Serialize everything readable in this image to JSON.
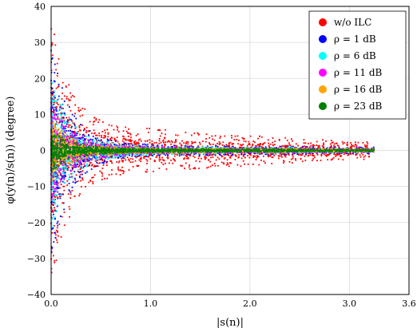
{
  "chart_data": {
    "type": "scatter",
    "title": "",
    "xlabel": "|s(n)|",
    "ylabel": "φ(y(n)/s(n)) (degree)",
    "xlim": [
      0,
      3.6
    ],
    "ylim": [
      -40,
      40
    ],
    "x_ticks": [
      0.0,
      1.0,
      2.0,
      3.0,
      3.6
    ],
    "x_tick_labels": [
      "0.0",
      "1.0",
      "2.0",
      "3.0",
      "3.6"
    ],
    "y_ticks": [
      -40,
      -30,
      -20,
      -10,
      0,
      10,
      20,
      30,
      40
    ],
    "y_tick_labels": [
      "−40",
      "−30",
      "−20",
      "−10",
      "0",
      "10",
      "20",
      "30",
      "40"
    ],
    "grid": true,
    "legend_position": "top-right",
    "series": [
      {
        "name": "w/o ILC",
        "color": "#ff0000",
        "spread_at_zero": 38,
        "spread_at_one": 6,
        "spread_at_three": 2.5,
        "max_x": 3.2
      },
      {
        "name": "ρ = 1 dB",
        "color": "#0000ff",
        "spread_at_zero": 30,
        "spread_at_one": 1.5,
        "spread_at_three": 0.9,
        "max_x": 3.25
      },
      {
        "name": "ρ = 6 dB",
        "color": "#00ffff",
        "spread_at_zero": 22,
        "spread_at_one": 1.2,
        "spread_at_three": 0.7,
        "max_x": 3.25
      },
      {
        "name": "ρ = 11 dB",
        "color": "#ff00ff",
        "spread_at_zero": 14,
        "spread_at_one": 1.0,
        "spread_at_three": 0.6,
        "max_x": 3.25
      },
      {
        "name": "ρ = 16 dB",
        "color": "#ffa500",
        "spread_at_zero": 9,
        "spread_at_one": 0.8,
        "spread_at_three": 0.5,
        "max_x": 3.25
      },
      {
        "name": "ρ = 23 dB",
        "color": "#008000",
        "spread_at_zero": 6,
        "spread_at_one": 0.6,
        "spread_at_three": 0.4,
        "max_x": 3.25
      }
    ]
  }
}
